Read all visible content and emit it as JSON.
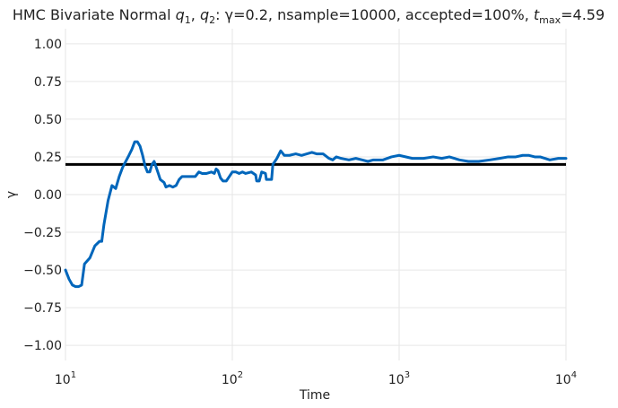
{
  "chart_data": {
    "type": "line",
    "title": {
      "prefix": "HMC Bivariate Normal ",
      "q1_main": "q",
      "q1_sub": "1",
      "sep": ", ",
      "q2_main": "q",
      "q2_sub": "2",
      "mid": ": γ=0.2, nsample=10000, accepted=100%, ",
      "t_main": "t",
      "t_sub": "max",
      "suffix": "=4.59"
    },
    "xlabel": "Time",
    "ylabel": "γ",
    "x_scale": "log",
    "xlim": [
      10,
      10000
    ],
    "ylim": [
      -1.1,
      1.1
    ],
    "grid": true,
    "x_ticks": [
      {
        "value": 10,
        "base": "10",
        "exp": "1"
      },
      {
        "value": 100,
        "base": "10",
        "exp": "2"
      },
      {
        "value": 1000,
        "base": "10",
        "exp": "3"
      },
      {
        "value": 10000,
        "base": "10",
        "exp": "4"
      }
    ],
    "y_ticks": [
      {
        "value": 1.0,
        "label": "1.00"
      },
      {
        "value": 0.75,
        "label": "0.75"
      },
      {
        "value": 0.5,
        "label": "0.50"
      },
      {
        "value": 0.25,
        "label": "0.25"
      },
      {
        "value": 0.0,
        "label": "0.00"
      },
      {
        "value": -0.25,
        "label": "−0.25"
      },
      {
        "value": -0.5,
        "label": "−0.50"
      },
      {
        "value": -0.75,
        "label": "−0.75"
      },
      {
        "value": -1.0,
        "label": "−1.00"
      }
    ],
    "reference_line": {
      "y": 0.2,
      "color": "#000000"
    },
    "series": [
      {
        "color": "#0066bb",
        "points": [
          [
            10,
            -0.5
          ],
          [
            10.5,
            -0.56
          ],
          [
            11,
            -0.6
          ],
          [
            11.5,
            -0.61
          ],
          [
            12,
            -0.61
          ],
          [
            12.5,
            -0.6
          ],
          [
            13,
            -0.46
          ],
          [
            14,
            -0.42
          ],
          [
            15,
            -0.34
          ],
          [
            16,
            -0.31
          ],
          [
            16.5,
            -0.31
          ],
          [
            17,
            -0.2
          ],
          [
            18,
            -0.04
          ],
          [
            19,
            0.06
          ],
          [
            20,
            0.04
          ],
          [
            21,
            0.12
          ],
          [
            22,
            0.18
          ],
          [
            24,
            0.26
          ],
          [
            25,
            0.3
          ],
          [
            26,
            0.35
          ],
          [
            27,
            0.35
          ],
          [
            28,
            0.32
          ],
          [
            29,
            0.26
          ],
          [
            30,
            0.19
          ],
          [
            31,
            0.15
          ],
          [
            32,
            0.15
          ],
          [
            33,
            0.2
          ],
          [
            34,
            0.22
          ],
          [
            35,
            0.18
          ],
          [
            36,
            0.14
          ],
          [
            37,
            0.1
          ],
          [
            39,
            0.08
          ],
          [
            40,
            0.05
          ],
          [
            42,
            0.06
          ],
          [
            44,
            0.05
          ],
          [
            46,
            0.06
          ],
          [
            48,
            0.1
          ],
          [
            50,
            0.12
          ],
          [
            55,
            0.12
          ],
          [
            60,
            0.12
          ],
          [
            63,
            0.15
          ],
          [
            66,
            0.14
          ],
          [
            70,
            0.14
          ],
          [
            75,
            0.15
          ],
          [
            78,
            0.14
          ],
          [
            80,
            0.17
          ],
          [
            82,
            0.16
          ],
          [
            85,
            0.11
          ],
          [
            88,
            0.09
          ],
          [
            92,
            0.09
          ],
          [
            96,
            0.12
          ],
          [
            100,
            0.15
          ],
          [
            105,
            0.15
          ],
          [
            110,
            0.14
          ],
          [
            115,
            0.15
          ],
          [
            120,
            0.14
          ],
          [
            130,
            0.15
          ],
          [
            138,
            0.13
          ],
          [
            140,
            0.09
          ],
          [
            145,
            0.09
          ],
          [
            150,
            0.15
          ],
          [
            158,
            0.14
          ],
          [
            160,
            0.1
          ],
          [
            165,
            0.1
          ],
          [
            172,
            0.1
          ],
          [
            175,
            0.2
          ],
          [
            180,
            0.22
          ],
          [
            185,
            0.24
          ],
          [
            195,
            0.29
          ],
          [
            205,
            0.26
          ],
          [
            220,
            0.26
          ],
          [
            240,
            0.27
          ],
          [
            260,
            0.26
          ],
          [
            280,
            0.27
          ],
          [
            300,
            0.28
          ],
          [
            320,
            0.27
          ],
          [
            350,
            0.27
          ],
          [
            380,
            0.24
          ],
          [
            400,
            0.23
          ],
          [
            420,
            0.25
          ],
          [
            450,
            0.24
          ],
          [
            500,
            0.23
          ],
          [
            550,
            0.24
          ],
          [
            600,
            0.23
          ],
          [
            650,
            0.22
          ],
          [
            700,
            0.23
          ],
          [
            800,
            0.23
          ],
          [
            900,
            0.25
          ],
          [
            1000,
            0.26
          ],
          [
            1200,
            0.24
          ],
          [
            1400,
            0.24
          ],
          [
            1600,
            0.25
          ],
          [
            1800,
            0.24
          ],
          [
            2000,
            0.25
          ],
          [
            2300,
            0.23
          ],
          [
            2600,
            0.22
          ],
          [
            3000,
            0.22
          ],
          [
            3500,
            0.23
          ],
          [
            4000,
            0.24
          ],
          [
            4500,
            0.25
          ],
          [
            5000,
            0.25
          ],
          [
            5500,
            0.26
          ],
          [
            6000,
            0.26
          ],
          [
            6500,
            0.25
          ],
          [
            7000,
            0.25
          ],
          [
            8000,
            0.23
          ],
          [
            9000,
            0.24
          ],
          [
            10000,
            0.24
          ]
        ]
      }
    ]
  }
}
